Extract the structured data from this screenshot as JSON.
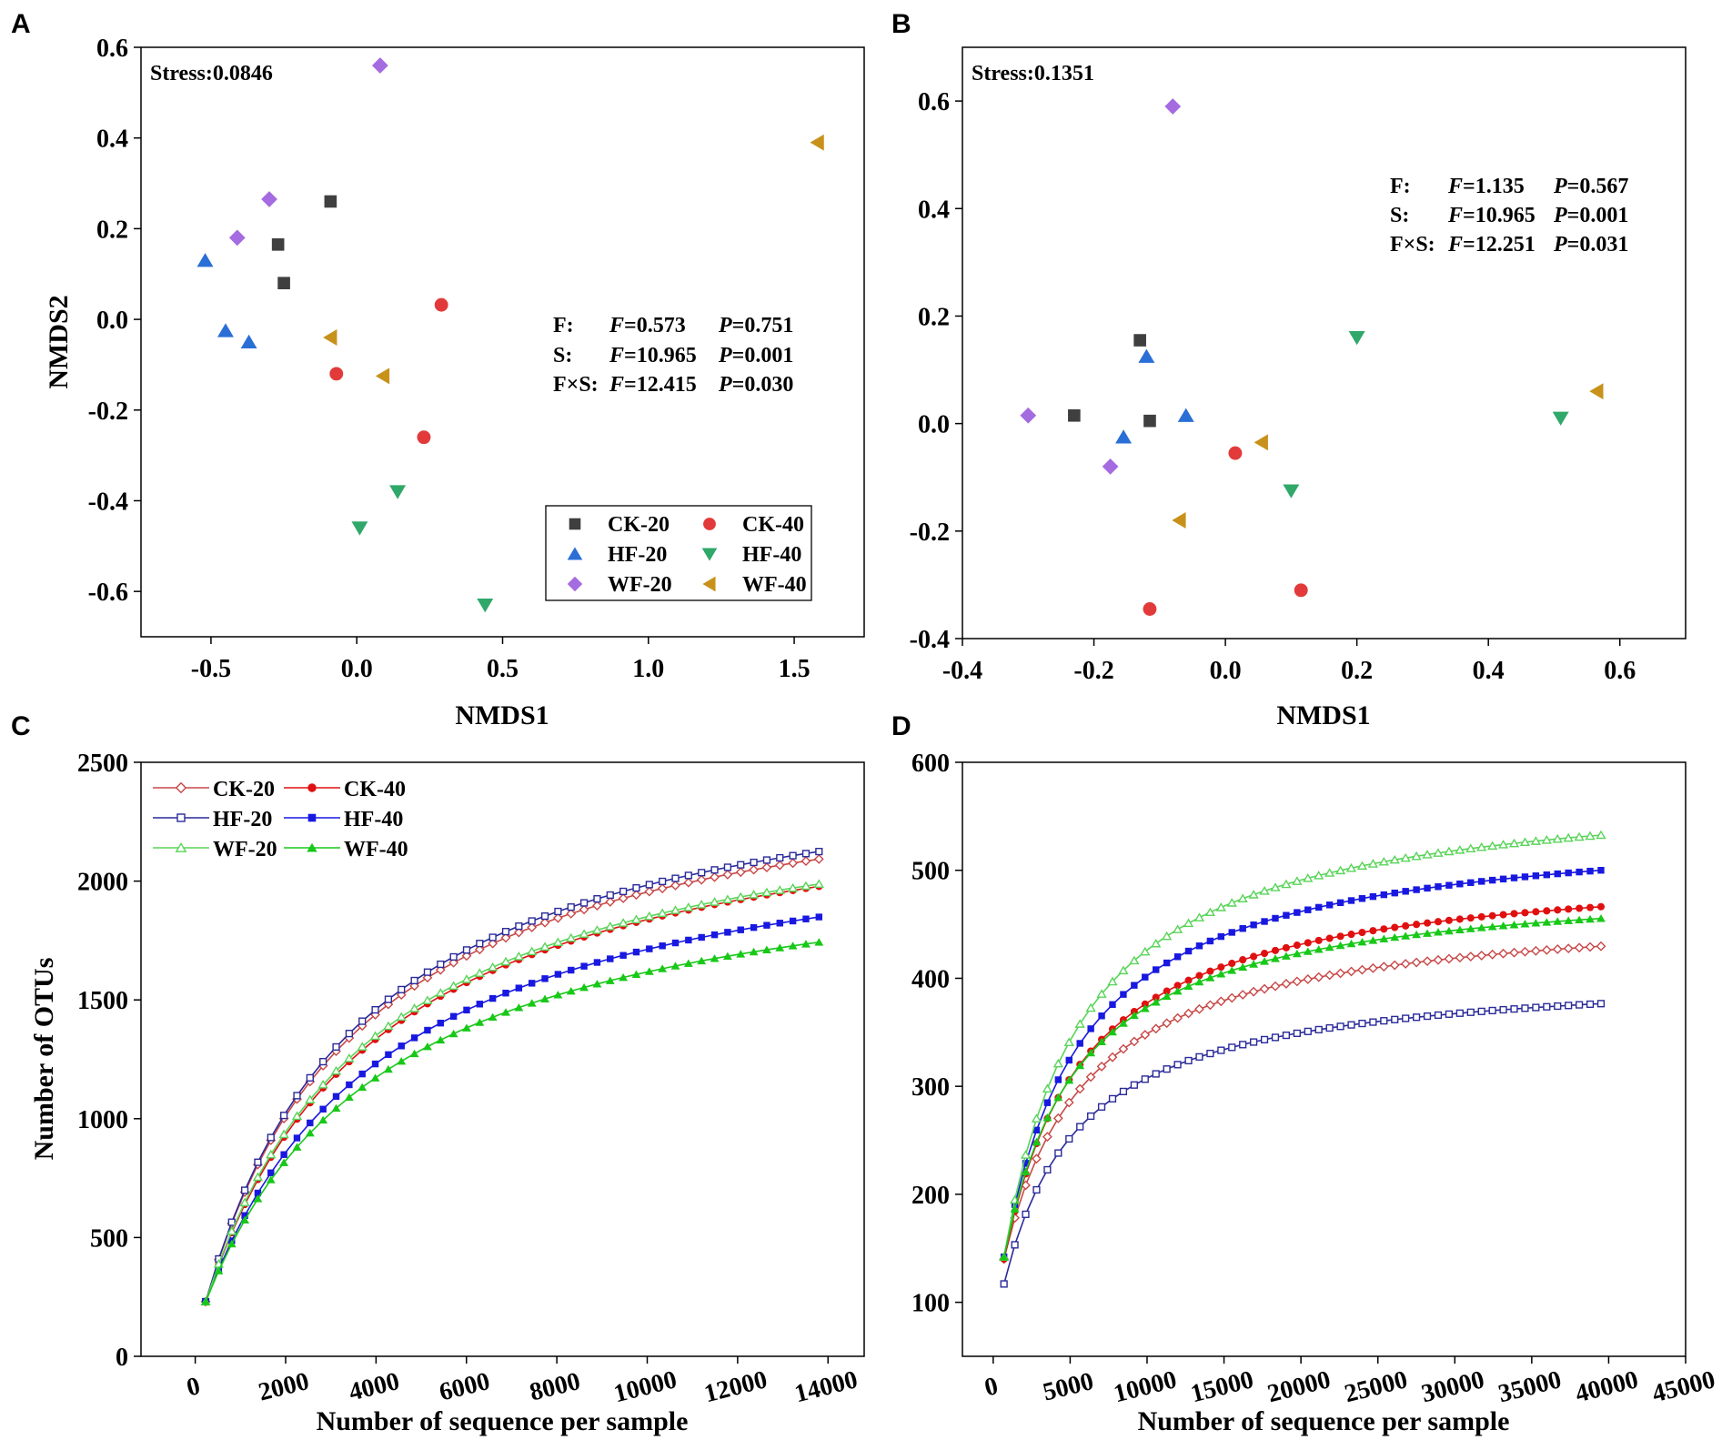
{
  "figure": {
    "panels": [
      "A",
      "B",
      "C",
      "D"
    ]
  },
  "colors": {
    "CK-20": "#3f3f3f",
    "CK-40": "#e23a3a",
    "HF-20": "#2a6fd6",
    "HF-40": "#2fa86a",
    "WF-20": "#a56be0",
    "WF-40": "#c8921a",
    "CK-20-line": "#c84848",
    "CK-40-line": "#e01010",
    "HF-20-line": "#2a2a9a",
    "HF-40-line": "#1818e0",
    "WF-20-line": "#5ad45a",
    "WF-40-line": "#18c818"
  },
  "chart_data": [
    {
      "id": "A",
      "type": "scatter",
      "title": "",
      "xlabel": "NMDS1",
      "ylabel": "NMDS2",
      "xlim": [
        -0.74,
        1.74
      ],
      "ylim": [
        -0.7,
        0.6
      ],
      "xticks": [
        -0.5,
        0.0,
        0.5,
        1.0,
        1.5
      ],
      "xtick_labels": [
        "-0.5",
        "0.0",
        "0.5",
        "1.0",
        "1.5"
      ],
      "yticks": [
        -0.6,
        -0.4,
        -0.2,
        0.0,
        0.2,
        0.4,
        0.6
      ],
      "ytick_labels": [
        "-0.6",
        "-0.4",
        "-0.2",
        "0.0",
        "0.2",
        "0.4",
        "0.6"
      ],
      "stress": "Stress:0.0846",
      "stats": [
        {
          "term": "F:",
          "f": "=0.573",
          "p": "=0.751"
        },
        {
          "term": "S:",
          "f": "=10.965",
          "p": "=0.001"
        },
        {
          "term": "F×S:",
          "f": "=12.415",
          "p": "=0.030"
        }
      ],
      "legend_position": "bottom-right",
      "series": [
        {
          "name": "CK-20",
          "marker": "square",
          "points": [
            [
              -0.27,
              0.165
            ],
            [
              -0.25,
              0.08
            ],
            [
              -0.09,
              0.26
            ]
          ]
        },
        {
          "name": "CK-40",
          "marker": "circle",
          "points": [
            [
              -0.07,
              -0.12
            ],
            [
              0.23,
              -0.26
            ],
            [
              0.29,
              0.032
            ]
          ]
        },
        {
          "name": "HF-20",
          "marker": "triangle-up",
          "points": [
            [
              -0.52,
              0.13
            ],
            [
              -0.45,
              -0.025
            ],
            [
              -0.37,
              -0.05
            ]
          ]
        },
        {
          "name": "HF-40",
          "marker": "triangle-down",
          "points": [
            [
              0.01,
              -0.46
            ],
            [
              0.14,
              -0.38
            ],
            [
              0.44,
              -0.63
            ]
          ]
        },
        {
          "name": "WF-20",
          "marker": "diamond",
          "points": [
            [
              -0.41,
              0.18
            ],
            [
              -0.3,
              0.265
            ],
            [
              0.08,
              0.56
            ]
          ]
        },
        {
          "name": "WF-40",
          "marker": "triangle-left",
          "points": [
            [
              -0.09,
              -0.04
            ],
            [
              0.09,
              -0.125
            ],
            [
              1.58,
              0.39
            ]
          ]
        }
      ]
    },
    {
      "id": "B",
      "type": "scatter",
      "title": "",
      "xlabel": "NMDS1",
      "ylabel": "",
      "xlim": [
        -0.4,
        0.7
      ],
      "ylim": [
        -0.4,
        0.7
      ],
      "xticks": [
        -0.4,
        -0.2,
        0.0,
        0.2,
        0.4,
        0.6
      ],
      "xtick_labels": [
        "-0.4",
        "-0.2",
        "0.0",
        "0.2",
        "0.4",
        "0.6"
      ],
      "yticks": [
        -0.4,
        -0.2,
        0.0,
        0.2,
        0.4,
        0.6
      ],
      "ytick_labels": [
        "-0.4",
        "-0.2",
        "0.0",
        "0.2",
        "0.4",
        "0.6"
      ],
      "stress": "Stress:0.1351",
      "stats": [
        {
          "term": "F:",
          "f": "=1.135",
          "p": "=0.567"
        },
        {
          "term": "S:",
          "f": "=10.965",
          "p": "=0.001"
        },
        {
          "term": "F×S:",
          "f": "=12.251",
          "p": "=0.031"
        }
      ],
      "series": [
        {
          "name": "CK-20",
          "marker": "square",
          "points": [
            [
              -0.23,
              0.015
            ],
            [
              -0.13,
              0.155
            ],
            [
              -0.115,
              0.005
            ]
          ]
        },
        {
          "name": "CK-40",
          "marker": "circle",
          "points": [
            [
              -0.115,
              -0.345
            ],
            [
              0.015,
              -0.055
            ],
            [
              0.115,
              -0.31
            ]
          ]
        },
        {
          "name": "HF-20",
          "marker": "triangle-up",
          "points": [
            [
              -0.155,
              -0.025
            ],
            [
              -0.12,
              0.125
            ],
            [
              -0.06,
              0.015
            ]
          ]
        },
        {
          "name": "HF-40",
          "marker": "triangle-down",
          "points": [
            [
              0.1,
              -0.125
            ],
            [
              0.2,
              0.16
            ],
            [
              0.51,
              0.01
            ]
          ]
        },
        {
          "name": "WF-20",
          "marker": "diamond",
          "points": [
            [
              -0.3,
              0.015
            ],
            [
              -0.175,
              -0.08
            ],
            [
              -0.08,
              0.59
            ]
          ]
        },
        {
          "name": "WF-40",
          "marker": "triangle-left",
          "points": [
            [
              -0.07,
              -0.18
            ],
            [
              0.055,
              -0.035
            ],
            [
              0.565,
              0.06
            ]
          ]
        }
      ]
    },
    {
      "id": "C",
      "type": "line",
      "title": "",
      "xlabel": "Number of sequence per sample",
      "ylabel": "Number of OTUs",
      "xlim": [
        -1200,
        14800
      ],
      "ylim": [
        0,
        2500
      ],
      "xticks": [
        0,
        2000,
        4000,
        6000,
        8000,
        10000,
        12000,
        14000
      ],
      "xtick_labels": [
        "0",
        "2000",
        "4000",
        "6000",
        "8000",
        "10000",
        "12000",
        "14000"
      ],
      "yticks": [
        0,
        500,
        1000,
        1500,
        2000,
        2500
      ],
      "ytick_labels": [
        "0",
        "500",
        "1000",
        "1500",
        "2000",
        "2500"
      ],
      "legend_position": "top-left",
      "x_start": 230,
      "x_end": 13800,
      "n_points": 48,
      "series": [
        {
          "name": "CK-20",
          "marker": "diamond-open",
          "y0": 230,
          "ymax": 2580,
          "k": 3550
        },
        {
          "name": "CK-40",
          "marker": "circle-filled",
          "y0": 230,
          "ymax": 2480,
          "k": 3900
        },
        {
          "name": "HF-20",
          "marker": "square-open",
          "y0": 230,
          "ymax": 2620,
          "k": 3550
        },
        {
          "name": "HF-40",
          "marker": "square-filled",
          "y0": 230,
          "ymax": 2350,
          "k": 4200
        },
        {
          "name": "WF-20",
          "marker": "triangle-open",
          "y0": 230,
          "ymax": 2480,
          "k": 3800
        },
        {
          "name": "WF-40",
          "marker": "triangle-filled",
          "y0": 230,
          "ymax": 2200,
          "k": 4100
        }
      ]
    },
    {
      "id": "D",
      "type": "line",
      "title": "",
      "xlabel": "Number of sequence per sample",
      "ylabel": "",
      "xlim": [
        -2000,
        45000
      ],
      "ylim": [
        50,
        600
      ],
      "xticks": [
        0,
        5000,
        10000,
        15000,
        20000,
        25000,
        30000,
        35000,
        40000,
        45000
      ],
      "xtick_labels": [
        "0",
        "5000",
        "10000",
        "15000",
        "20000",
        "25000",
        "30000",
        "35000",
        "40000",
        "45000"
      ],
      "yticks": [
        100,
        200,
        300,
        400,
        500,
        600
      ],
      "ytick_labels": [
        "100",
        "200",
        "300",
        "400",
        "500",
        "600"
      ],
      "x_start": 700,
      "x_end": 39500,
      "n_points": 56,
      "series": [
        {
          "name": "CK-20",
          "marker": "diamond-open",
          "y0": 140,
          "ymax": 470,
          "k": 5400
        },
        {
          "name": "CK-40",
          "marker": "circle-filled",
          "y0": 140,
          "ymax": 510,
          "k": 5200
        },
        {
          "name": "HF-20",
          "marker": "square-open",
          "y0": 117,
          "ymax": 410,
          "k": 5000
        },
        {
          "name": "HF-40",
          "marker": "square-filled",
          "y0": 142,
          "ymax": 548,
          "k": 5200
        },
        {
          "name": "WF-20",
          "marker": "triangle-open",
          "y0": 142,
          "ymax": 585,
          "k": 5200
        },
        {
          "name": "WF-40",
          "marker": "triangle-filled",
          "y0": 142,
          "ymax": 495,
          "k": 4900
        }
      ]
    }
  ]
}
